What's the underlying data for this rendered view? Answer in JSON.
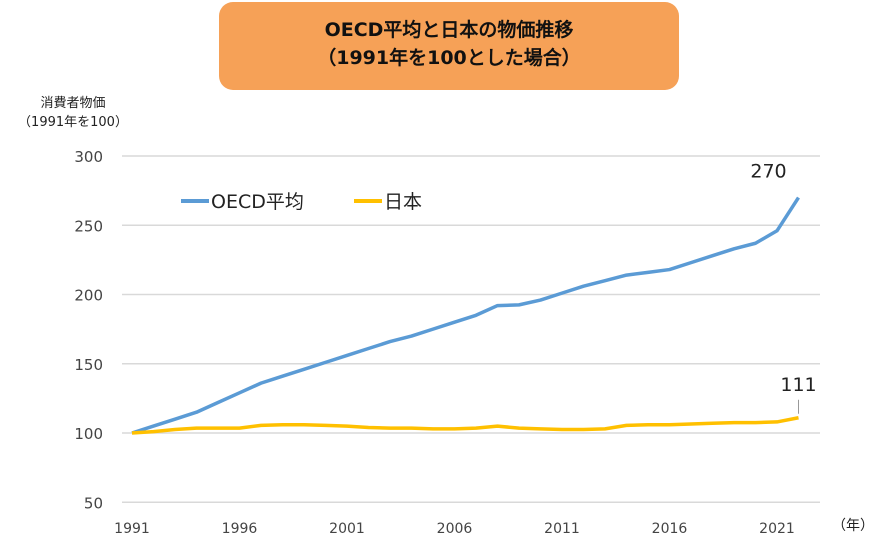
{
  "chart_data": {
    "type": "line",
    "title_line1": "OECD平均と日本の物価推移",
    "title_line2": "（1991年を100とした場合）",
    "ylabel_line1": "消費者物価",
    "ylabel_line2": "（1991年を100）",
    "xlabel_unit": "（年）",
    "ylim": [
      50,
      300
    ],
    "yticks": [
      "50",
      "100",
      "150",
      "200",
      "250",
      "300"
    ],
    "xticks": [
      "1991",
      "1996",
      "2001",
      "2006",
      "2011",
      "2016",
      "2021"
    ],
    "x": [
      1991,
      1992,
      1993,
      1994,
      1995,
      1996,
      1997,
      1998,
      1999,
      2000,
      2001,
      2002,
      2003,
      2004,
      2005,
      2006,
      2007,
      2008,
      2009,
      2010,
      2011,
      2012,
      2013,
      2014,
      2015,
      2016,
      2017,
      2018,
      2019,
      2020,
      2021,
      2022
    ],
    "grid": true,
    "legend_placement": "top-left",
    "series": [
      {
        "name": "OECD平均",
        "color": "#5B9BD5",
        "end_label": "270",
        "values": [
          100,
          105,
          110,
          115,
          122,
          129,
          136,
          141,
          146,
          151,
          156,
          161,
          166,
          170,
          175,
          180,
          185,
          192,
          192.5,
          196,
          201,
          206,
          210,
          214,
          216,
          218,
          223,
          228,
          233,
          237,
          246,
          270
        ]
      },
      {
        "name": "日本",
        "color": "#FFC000",
        "end_label": "111",
        "values": [
          100,
          101,
          102.5,
          103.5,
          103.5,
          103.5,
          105.5,
          106,
          106,
          105.5,
          105,
          104,
          103.5,
          103.5,
          103,
          103,
          103.5,
          105,
          103.5,
          103,
          102.5,
          102.5,
          103,
          105.5,
          106,
          106,
          106.5,
          107,
          107.5,
          107.5,
          108,
          111
        ]
      }
    ]
  }
}
